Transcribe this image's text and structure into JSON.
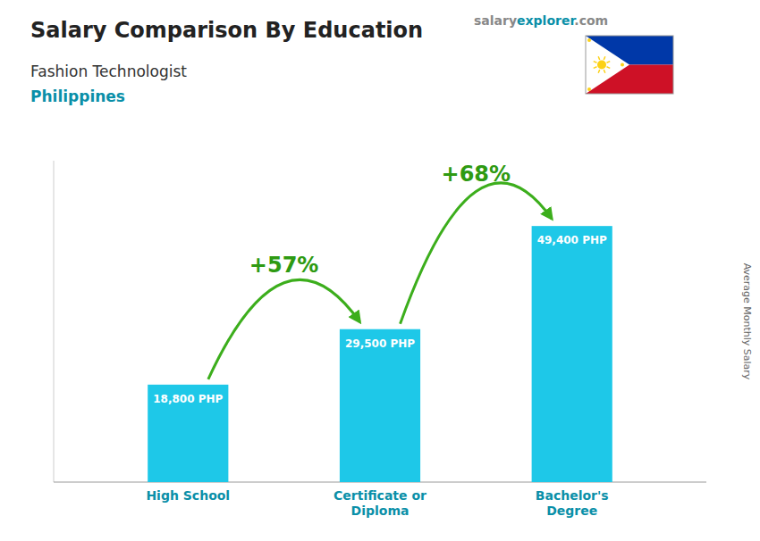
{
  "chart_data": {
    "type": "bar",
    "title": "Salary Comparison By Education",
    "subtitle": "Fashion Technologist",
    "country": "Philippines",
    "watermark": [
      "salary",
      "explorer",
      ".com"
    ],
    "ylabel": "Average Monthly Salary",
    "categories": [
      "High School",
      "Certificate or\nDiploma",
      "Bachelor's\nDegree"
    ],
    "values": [
      18800,
      29500,
      49400
    ],
    "value_labels": [
      "18,800 PHP",
      "29,500 PHP",
      "49,400 PHP"
    ],
    "data_labels": true,
    "annotations": [
      "+57%",
      "+68%"
    ],
    "color": "#1EC8E8",
    "ylim": [
      0,
      62000
    ],
    "tick_labels": "x",
    "grid": false
  }
}
